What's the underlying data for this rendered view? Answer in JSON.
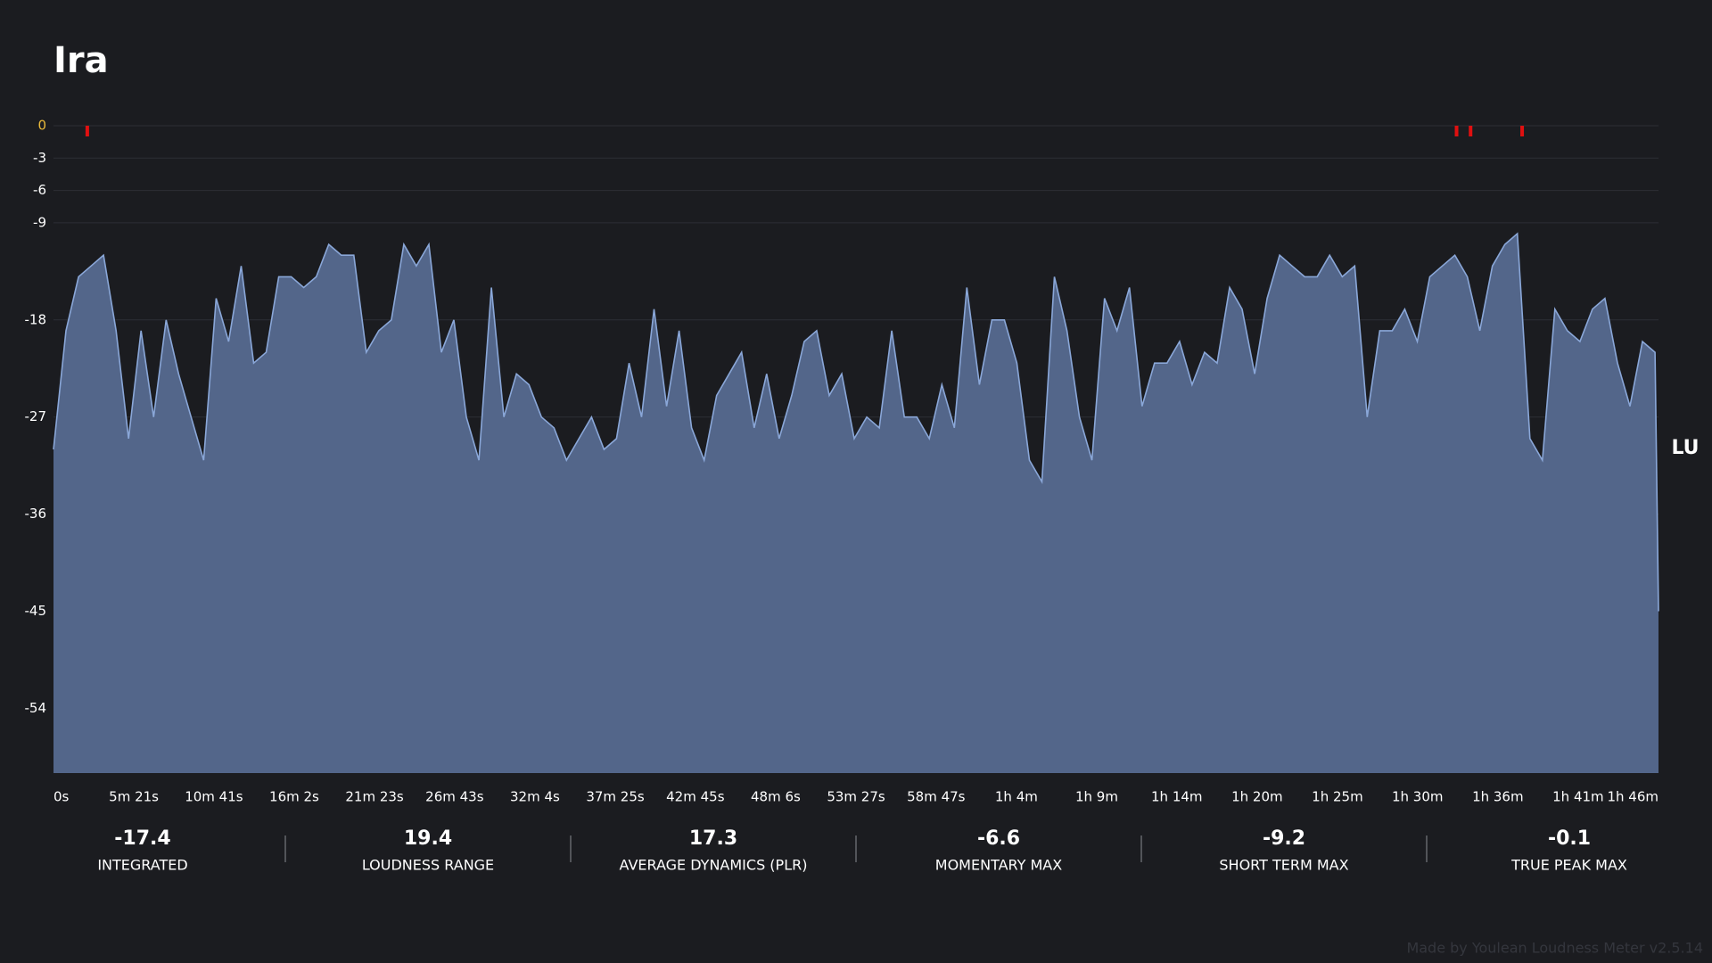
{
  "chart_data": {
    "type": "area",
    "title": "Ira",
    "y_unit_label": "LU",
    "x": [
      0,
      50,
      100,
      150,
      200,
      250,
      300,
      350,
      400,
      450,
      500,
      550,
      600,
      650,
      700,
      750,
      800,
      850,
      900,
      950,
      1000,
      1050,
      1100,
      1150,
      1200,
      1250,
      1300,
      1350,
      1400,
      1450,
      1500,
      1550,
      1600,
      1650,
      1700,
      1750,
      1800,
      1850,
      1900,
      1950,
      2000,
      2050,
      2100,
      2150,
      2200,
      2250,
      2300,
      2350,
      2400,
      2450,
      2500,
      2550,
      2600,
      2650,
      2700,
      2750,
      2800,
      2850,
      2900,
      2950,
      3000,
      3050,
      3100,
      3150,
      3200,
      3250,
      3300,
      3350,
      3400,
      3450,
      3500,
      3550,
      3600,
      3650,
      3700,
      3750,
      3800,
      3850,
      3900,
      3950,
      4000,
      4050,
      4100,
      4150,
      4200,
      4250,
      4300,
      4350,
      4400,
      4450,
      4500,
      4550,
      4600,
      4650,
      4700,
      4750,
      4800,
      4850,
      4900,
      4950,
      5000,
      5050,
      5100,
      5150,
      5200,
      5250,
      5300,
      5350,
      5400,
      5450,
      5500,
      5550,
      5600,
      5650,
      5700,
      5750,
      5800,
      5850,
      5900,
      5950,
      6000,
      6050,
      6100,
      6150,
      6200,
      6250,
      6300,
      6350,
      6400,
      6414
    ],
    "values": [
      -30,
      -19,
      -14,
      -13,
      -12,
      -19,
      -29,
      -19,
      -27,
      -18,
      -23,
      -27,
      -31,
      -16,
      -20,
      -13,
      -22,
      -21,
      -14,
      -14,
      -15,
      -14,
      -11,
      -12,
      -12,
      -21,
      -19,
      -18,
      -11,
      -13,
      -11,
      -21,
      -18,
      -27,
      -31,
      -15,
      -27,
      -23,
      -24,
      -27,
      -28,
      -31,
      -29,
      -27,
      -30,
      -29,
      -22,
      -27,
      -17,
      -26,
      -19,
      -28,
      -31,
      -25,
      -23,
      -21,
      -28,
      -23,
      -29,
      -25,
      -20,
      -19,
      -25,
      -23,
      -29,
      -27,
      -28,
      -19,
      -27,
      -27,
      -29,
      -24,
      -28,
      -15,
      -24,
      -18,
      -18,
      -22,
      -31,
      -33,
      -14,
      -19,
      -27,
      -31,
      -16,
      -19,
      -15,
      -26,
      -22,
      -22,
      -20,
      -24,
      -21,
      -22,
      -15,
      -17,
      -23,
      -16,
      -12,
      -13,
      -14,
      -14,
      -12,
      -14,
      -13,
      -27,
      -19,
      -19,
      -17,
      -20,
      -14,
      -13,
      -12,
      -14,
      -19,
      -13,
      -11,
      -10,
      -29,
      -31,
      -17,
      -19,
      -20,
      -17,
      -16,
      -22,
      -26,
      -20,
      -21,
      -45
    ],
    "fill_color": "#53668a",
    "line_color": "#8aa7d8",
    "xlim": [
      0,
      6414
    ],
    "xticks": [
      {
        "value": 0,
        "label": "0s"
      },
      {
        "value": 321,
        "label": "5m 21s"
      },
      {
        "value": 641,
        "label": "10m 41s"
      },
      {
        "value": 962,
        "label": "16m 2s"
      },
      {
        "value": 1283,
        "label": "21m 23s"
      },
      {
        "value": 1603,
        "label": "26m 43s"
      },
      {
        "value": 1924,
        "label": "32m 4s"
      },
      {
        "value": 2245,
        "label": "37m 25s"
      },
      {
        "value": 2565,
        "label": "42m 45s"
      },
      {
        "value": 2886,
        "label": "48m 6s"
      },
      {
        "value": 3207,
        "label": "53m 27s"
      },
      {
        "value": 3527,
        "label": "58m 47s"
      },
      {
        "value": 3848,
        "label": "1h 4m"
      },
      {
        "value": 4169,
        "label": "1h 9m"
      },
      {
        "value": 4489,
        "label": "1h 14m"
      },
      {
        "value": 4810,
        "label": "1h 20m"
      },
      {
        "value": 5131,
        "label": "1h 25m"
      },
      {
        "value": 5451,
        "label": "1h 30m"
      },
      {
        "value": 5772,
        "label": "1h 36m"
      },
      {
        "value": 6093,
        "label": "1h 41m"
      },
      {
        "value": 6414,
        "label": "1h 46m"
      }
    ],
    "ylim": [
      -60,
      0
    ],
    "yticks": [
      0,
      -3,
      -6,
      -9,
      -18,
      -27,
      -36,
      -45,
      -54
    ],
    "zero_tick_color": "#e8b83a",
    "grid": true,
    "peaks": [
      135,
      5607,
      5663,
      5869
    ],
    "peak_color": "#e01010"
  },
  "stats": [
    {
      "value": "-17.4",
      "label": "INTEGRATED"
    },
    {
      "value": "19.4",
      "label": "LOUDNESS RANGE"
    },
    {
      "value": "17.3",
      "label": "AVERAGE DYNAMICS (PLR)"
    },
    {
      "value": "-6.6",
      "label": "MOMENTARY MAX"
    },
    {
      "value": "-9.2",
      "label": "SHORT TERM MAX"
    },
    {
      "value": "-0.1",
      "label": "TRUE PEAK MAX"
    }
  ],
  "footer": "Made by Youlean Loudness Meter v2.5.14"
}
